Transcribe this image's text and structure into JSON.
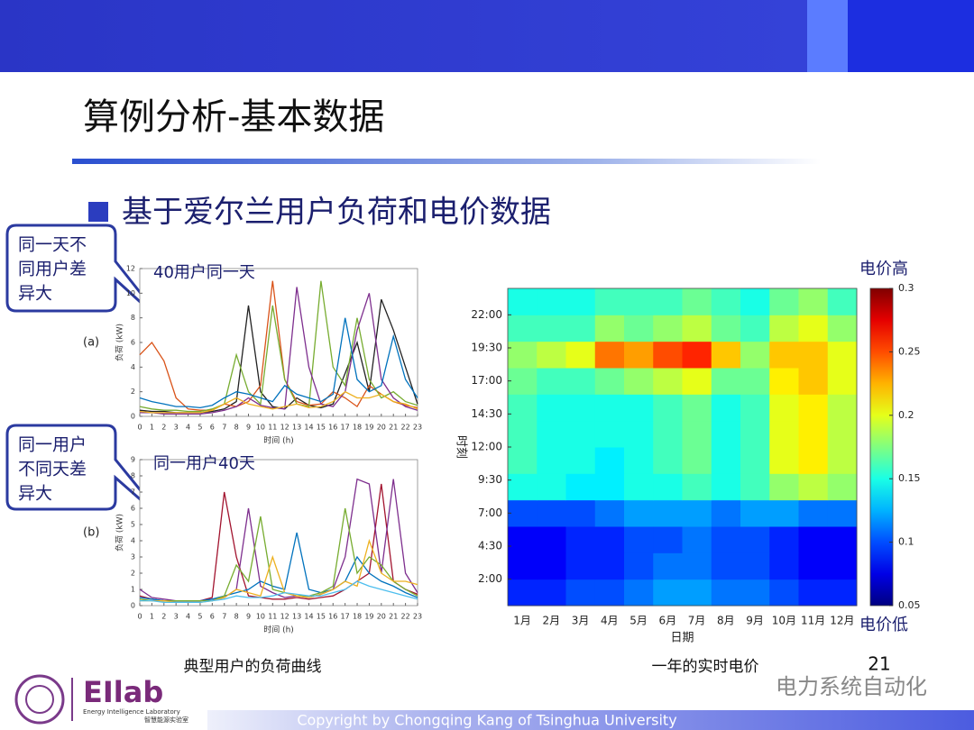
{
  "header": {
    "title": "算例分析-基本数据",
    "bullet": "基于爱尔兰用户负荷和电价数据"
  },
  "callouts": [
    [
      "同一天不",
      "同用户差",
      "异大"
    ],
    [
      "同一用户",
      "不同天差",
      "异大"
    ]
  ],
  "captions": [
    "典型用户的负荷曲线",
    "一年的实时电价"
  ],
  "footer": {
    "page": "21",
    "watermark": "电力系统自动化",
    "logo": "EIlab",
    "lab": "Energy Intelligence Laboratory",
    "lab_cn": "智慧能源实验室",
    "copyright": "Copyright by Chongqing Kang of Tsinghua University"
  },
  "chart_data": [
    {
      "type": "line",
      "panel": "(a)",
      "title": "40用户同一天",
      "xlabel": "时间 (h)",
      "ylabel": "负荷 (kW)",
      "x": [
        0,
        1,
        2,
        3,
        4,
        5,
        6,
        7,
        8,
        9,
        10,
        11,
        12,
        13,
        14,
        15,
        16,
        17,
        18,
        19,
        20,
        21,
        22,
        23
      ],
      "xlim": [
        0,
        23
      ],
      "xticks": [
        0,
        1,
        2,
        3,
        4,
        5,
        6,
        7,
        8,
        9,
        10,
        11,
        12,
        13,
        14,
        15,
        16,
        17,
        18,
        19,
        20,
        21,
        22,
        23
      ],
      "ylim": [
        0,
        12
      ],
      "yticks": [
        0,
        2,
        4,
        6,
        8,
        10,
        12
      ],
      "series": [
        {
          "color": "#222222",
          "values": [
            0.5,
            0.4,
            0.4,
            0.3,
            0.3,
            0.3,
            0.4,
            0.6,
            1.2,
            9.0,
            2.0,
            0.8,
            0.6,
            1.5,
            0.9,
            0.7,
            1.0,
            3.5,
            6.0,
            2.0,
            9.5,
            7.0,
            4.0,
            1.0
          ]
        },
        {
          "color": "#d95319",
          "values": [
            5.0,
            6.0,
            4.5,
            1.5,
            0.6,
            0.5,
            0.5,
            1.0,
            0.8,
            1.2,
            2.5,
            11.0,
            3.0,
            1.2,
            0.9,
            1.0,
            2.0,
            1.5,
            0.8,
            2.5,
            1.8,
            1.2,
            0.9,
            0.7
          ]
        },
        {
          "color": "#77ac30",
          "values": [
            0.8,
            0.6,
            0.5,
            0.5,
            0.4,
            0.4,
            0.6,
            1.0,
            5.0,
            2.0,
            1.0,
            9.0,
            3.0,
            1.0,
            0.8,
            11.0,
            4.0,
            2.5,
            8.0,
            3.0,
            1.5,
            2.0,
            1.2,
            0.9
          ]
        },
        {
          "color": "#7e2f8e",
          "values": [
            0.3,
            0.3,
            0.2,
            0.2,
            0.2,
            0.2,
            0.3,
            0.5,
            0.8,
            1.5,
            0.9,
            0.7,
            0.6,
            10.5,
            4.0,
            1.0,
            0.8,
            2.0,
            7.0,
            10.0,
            3.0,
            1.5,
            0.8,
            0.5
          ]
        },
        {
          "color": "#0072bd",
          "values": [
            1.5,
            1.2,
            1.0,
            0.8,
            0.8,
            0.7,
            0.9,
            1.5,
            2.0,
            1.8,
            1.5,
            1.2,
            2.5,
            1.8,
            1.5,
            1.2,
            1.8,
            8.0,
            3.0,
            2.0,
            2.5,
            6.5,
            3.0,
            1.5
          ]
        },
        {
          "color": "#edb120",
          "values": [
            0.4,
            0.3,
            0.3,
            0.3,
            0.3,
            0.3,
            0.5,
            1.0,
            1.5,
            1.0,
            0.8,
            0.6,
            0.8,
            1.0,
            0.7,
            0.8,
            1.2,
            2.0,
            1.5,
            1.5,
            1.8,
            1.2,
            1.0,
            0.6
          ]
        }
      ]
    },
    {
      "type": "line",
      "panel": "(b)",
      "title": "同一用户40天",
      "xlabel": "时间 (h)",
      "ylabel": "负荷 (kW)",
      "x": [
        0,
        1,
        2,
        3,
        4,
        5,
        6,
        7,
        8,
        9,
        10,
        11,
        12,
        13,
        14,
        15,
        16,
        17,
        18,
        19,
        20,
        21,
        22,
        23
      ],
      "xlim": [
        0,
        23
      ],
      "xticks": [
        0,
        1,
        2,
        3,
        4,
        5,
        6,
        7,
        8,
        9,
        10,
        11,
        12,
        13,
        14,
        15,
        16,
        17,
        18,
        19,
        20,
        21,
        22,
        23
      ],
      "ylim": [
        0,
        9
      ],
      "yticks": [
        0,
        1,
        2,
        3,
        4,
        5,
        6,
        7,
        8,
        9
      ],
      "series": [
        {
          "color": "#a2142f",
          "values": [
            0.6,
            0.4,
            0.3,
            0.3,
            0.3,
            0.3,
            0.5,
            7.0,
            3.0,
            0.6,
            0.5,
            0.4,
            0.4,
            0.5,
            0.4,
            0.5,
            0.6,
            1.0,
            1.5,
            2.0,
            7.5,
            1.5,
            1.0,
            0.7
          ]
        },
        {
          "color": "#7e2f8e",
          "values": [
            1.0,
            0.5,
            0.4,
            0.3,
            0.3,
            0.3,
            0.4,
            0.5,
            1.0,
            6.0,
            1.2,
            0.8,
            0.5,
            0.6,
            0.5,
            0.7,
            1.0,
            3.0,
            7.8,
            7.5,
            2.0,
            7.8,
            2.0,
            0.8
          ]
        },
        {
          "color": "#0072bd",
          "values": [
            0.5,
            0.4,
            0.3,
            0.3,
            0.3,
            0.3,
            0.4,
            0.6,
            0.8,
            1.0,
            1.5,
            1.2,
            1.0,
            4.5,
            1.0,
            0.8,
            1.0,
            1.5,
            3.0,
            2.0,
            1.5,
            1.2,
            0.8,
            0.5
          ]
        },
        {
          "color": "#77ac30",
          "values": [
            0.4,
            0.3,
            0.3,
            0.3,
            0.3,
            0.3,
            0.3,
            0.6,
            2.5,
            1.5,
            5.5,
            1.0,
            0.8,
            0.6,
            0.6,
            0.8,
            1.2,
            6.0,
            2.0,
            3.0,
            2.5,
            1.5,
            1.0,
            0.6
          ]
        },
        {
          "color": "#edb120",
          "values": [
            0.3,
            0.3,
            0.3,
            0.2,
            0.2,
            0.2,
            0.3,
            0.5,
            1.0,
            0.8,
            0.6,
            3.0,
            0.8,
            0.6,
            0.5,
            0.7,
            1.0,
            1.5,
            1.2,
            4.0,
            2.0,
            1.5,
            1.5,
            1.3
          ]
        },
        {
          "color": "#4dbeee",
          "values": [
            0.3,
            0.3,
            0.2,
            0.2,
            0.2,
            0.2,
            0.3,
            0.4,
            0.6,
            0.5,
            0.5,
            0.6,
            0.8,
            0.7,
            0.6,
            0.6,
            0.8,
            1.0,
            1.5,
            1.2,
            1.0,
            0.8,
            0.6,
            0.4
          ]
        }
      ]
    },
    {
      "type": "heatmap",
      "xlabel": "日期",
      "ylabel": "时刻",
      "colorbar_high": "电价高",
      "colorbar_low": "电价低",
      "categories": [
        "1月",
        "2月",
        "3月",
        "4月",
        "5月",
        "6月",
        "7月",
        "8月",
        "9月",
        "10月",
        "11月",
        "12月"
      ],
      "ylim": [
        0,
        24
      ],
      "yticks": [
        {
          "value": 2,
          "label": "2:00"
        },
        {
          "value": 4.5,
          "label": "4:30"
        },
        {
          "value": 7,
          "label": "7:00"
        },
        {
          "value": 9.5,
          "label": "9:30"
        },
        {
          "value": 12,
          "label": "12:00"
        },
        {
          "value": 14.5,
          "label": "14:30"
        },
        {
          "value": 17,
          "label": "17:00"
        },
        {
          "value": 19.5,
          "label": "19:30"
        },
        {
          "value": 22,
          "label": "22:00"
        }
      ],
      "clim": [
        0.05,
        0.3
      ],
      "cticks": [
        0.05,
        0.1,
        0.15,
        0.2,
        0.25,
        0.3
      ],
      "colormap": "jet",
      "values": [
        [
          0.09,
          0.09,
          0.1,
          0.1,
          0.11,
          0.12,
          0.12,
          0.11,
          0.11,
          0.1,
          0.09,
          0.09
        ],
        [
          0.08,
          0.08,
          0.09,
          0.09,
          0.1,
          0.11,
          0.11,
          0.1,
          0.1,
          0.09,
          0.08,
          0.08
        ],
        [
          0.08,
          0.08,
          0.09,
          0.09,
          0.1,
          0.1,
          0.11,
          0.1,
          0.1,
          0.09,
          0.08,
          0.08
        ],
        [
          0.1,
          0.1,
          0.1,
          0.11,
          0.12,
          0.12,
          0.12,
          0.11,
          0.12,
          0.12,
          0.11,
          0.11
        ],
        [
          0.15,
          0.15,
          0.14,
          0.14,
          0.15,
          0.15,
          0.16,
          0.15,
          0.16,
          0.18,
          0.19,
          0.18
        ],
        [
          0.16,
          0.15,
          0.15,
          0.14,
          0.15,
          0.16,
          0.17,
          0.15,
          0.16,
          0.2,
          0.21,
          0.19
        ],
        [
          0.16,
          0.15,
          0.15,
          0.15,
          0.15,
          0.16,
          0.17,
          0.15,
          0.16,
          0.2,
          0.21,
          0.19
        ],
        [
          0.16,
          0.15,
          0.15,
          0.15,
          0.15,
          0.16,
          0.17,
          0.15,
          0.16,
          0.2,
          0.21,
          0.19
        ],
        [
          0.17,
          0.16,
          0.16,
          0.17,
          0.18,
          0.19,
          0.2,
          0.17,
          0.17,
          0.21,
          0.22,
          0.2
        ],
        [
          0.18,
          0.19,
          0.2,
          0.24,
          0.23,
          0.25,
          0.26,
          0.22,
          0.18,
          0.22,
          0.22,
          0.2
        ],
        [
          0.16,
          0.16,
          0.16,
          0.18,
          0.17,
          0.18,
          0.19,
          0.17,
          0.16,
          0.19,
          0.2,
          0.18
        ],
        [
          0.15,
          0.15,
          0.15,
          0.16,
          0.16,
          0.16,
          0.17,
          0.16,
          0.15,
          0.17,
          0.18,
          0.16
        ]
      ]
    }
  ]
}
